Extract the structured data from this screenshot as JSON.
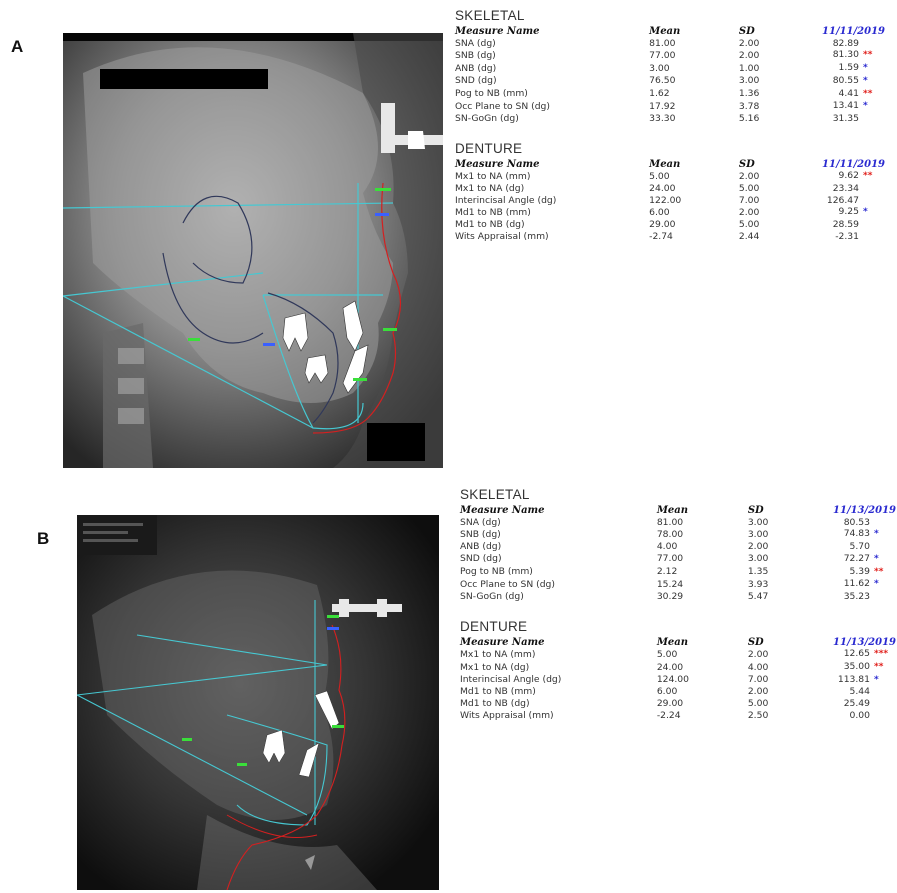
{
  "panels": [
    {
      "letter": "A",
      "skeletal": {
        "title": "SKELETAL",
        "headers": {
          "name": "Measure Name",
          "mean": "Mean",
          "sd": "SD",
          "date": "11/11/2019"
        },
        "rows": [
          {
            "name": "SNA (dg)",
            "mean": "81.00",
            "sd": "2.00",
            "value": "82.89",
            "flag": ""
          },
          {
            "name": "SNB (dg)",
            "mean": "77.00",
            "sd": "2.00",
            "value": "81.30",
            "flag": "**"
          },
          {
            "name": "ANB (dg)",
            "mean": "3.00",
            "sd": "1.00",
            "value": "1.59",
            "flag": "*"
          },
          {
            "name": "SND (dg)",
            "mean": "76.50",
            "sd": "3.00",
            "value": "80.55",
            "flag": "*"
          },
          {
            "name": "Pog to NB (mm)",
            "mean": "1.62",
            "sd": "1.36",
            "value": "4.41",
            "flag": "**"
          },
          {
            "name": "Occ Plane to SN (dg)",
            "mean": "17.92",
            "sd": "3.78",
            "value": "13.41",
            "flag": "*"
          },
          {
            "name": "SN-GoGn (dg)",
            "mean": "33.30",
            "sd": "5.16",
            "value": "31.35",
            "flag": ""
          }
        ]
      },
      "denture": {
        "title": "DENTURE",
        "headers": {
          "name": "Measure Name",
          "mean": "Mean",
          "sd": "SD",
          "date": "11/11/2019"
        },
        "rows": [
          {
            "name": "Mx1 to NA (mm)",
            "mean": "5.00",
            "sd": "2.00",
            "value": "9.62",
            "flag": "**"
          },
          {
            "name": "Mx1 to NA (dg)",
            "mean": "24.00",
            "sd": "5.00",
            "value": "23.34",
            "flag": ""
          },
          {
            "name": "Interincisal Angle (dg)",
            "mean": "122.00",
            "sd": "7.00",
            "value": "126.47",
            "flag": ""
          },
          {
            "name": "Md1 to NB (mm)",
            "mean": "6.00",
            "sd": "2.00",
            "value": "9.25",
            "flag": "*"
          },
          {
            "name": "Md1 to NB (dg)",
            "mean": "29.00",
            "sd": "5.00",
            "value": "28.59",
            "flag": ""
          },
          {
            "name": "Wits Appraisal (mm)",
            "mean": "-2.74",
            "sd": "2.44",
            "value": "-2.31",
            "flag": ""
          }
        ]
      }
    },
    {
      "letter": "B",
      "skeletal": {
        "title": "SKELETAL",
        "headers": {
          "name": "Measure Name",
          "mean": "Mean",
          "sd": "SD",
          "date": "11/13/2019"
        },
        "rows": [
          {
            "name": "SNA (dg)",
            "mean": "81.00",
            "sd": "3.00",
            "value": "80.53",
            "flag": ""
          },
          {
            "name": "SNB (dg)",
            "mean": "78.00",
            "sd": "3.00",
            "value": "74.83",
            "flag": "*"
          },
          {
            "name": "ANB (dg)",
            "mean": "4.00",
            "sd": "2.00",
            "value": "5.70",
            "flag": ""
          },
          {
            "name": "SND (dg)",
            "mean": "77.00",
            "sd": "3.00",
            "value": "72.27",
            "flag": "*"
          },
          {
            "name": "Pog to NB (mm)",
            "mean": "2.12",
            "sd": "1.35",
            "value": "5.39",
            "flag": "**"
          },
          {
            "name": "Occ Plane to SN (dg)",
            "mean": "15.24",
            "sd": "3.93",
            "value": "11.62",
            "flag": "*"
          },
          {
            "name": "SN-GoGn (dg)",
            "mean": "30.29",
            "sd": "5.47",
            "value": "35.23",
            "flag": ""
          }
        ]
      },
      "denture": {
        "title": "DENTURE",
        "headers": {
          "name": "Measure Name",
          "mean": "Mean",
          "sd": "SD",
          "date": "11/13/2019"
        },
        "rows": [
          {
            "name": "Mx1 to NA (mm)",
            "mean": "5.00",
            "sd": "2.00",
            "value": "12.65",
            "flag": "***"
          },
          {
            "name": "Mx1 to NA (dg)",
            "mean": "24.00",
            "sd": "4.00",
            "value": "35.00",
            "flag": "**"
          },
          {
            "name": "Interincisal Angle (dg)",
            "mean": "124.00",
            "sd": "7.00",
            "value": "113.81",
            "flag": "*"
          },
          {
            "name": "Md1 to NB (mm)",
            "mean": "6.00",
            "sd": "2.00",
            "value": "5.44",
            "flag": ""
          },
          {
            "name": "Md1 to NB (dg)",
            "mean": "29.00",
            "sd": "5.00",
            "value": "25.49",
            "flag": ""
          },
          {
            "name": "Wits Appraisal (mm)",
            "mean": "-2.24",
            "sd": "2.50",
            "value": "0.00",
            "flag": ""
          }
        ]
      }
    }
  ],
  "colors": {
    "flag_red": "#e0201c",
    "flag_blue": "#2a2ad0",
    "date_blue": "#2a2ad0",
    "tracing_cyan": "#46c8d2",
    "tracing_red": "#d42020"
  }
}
